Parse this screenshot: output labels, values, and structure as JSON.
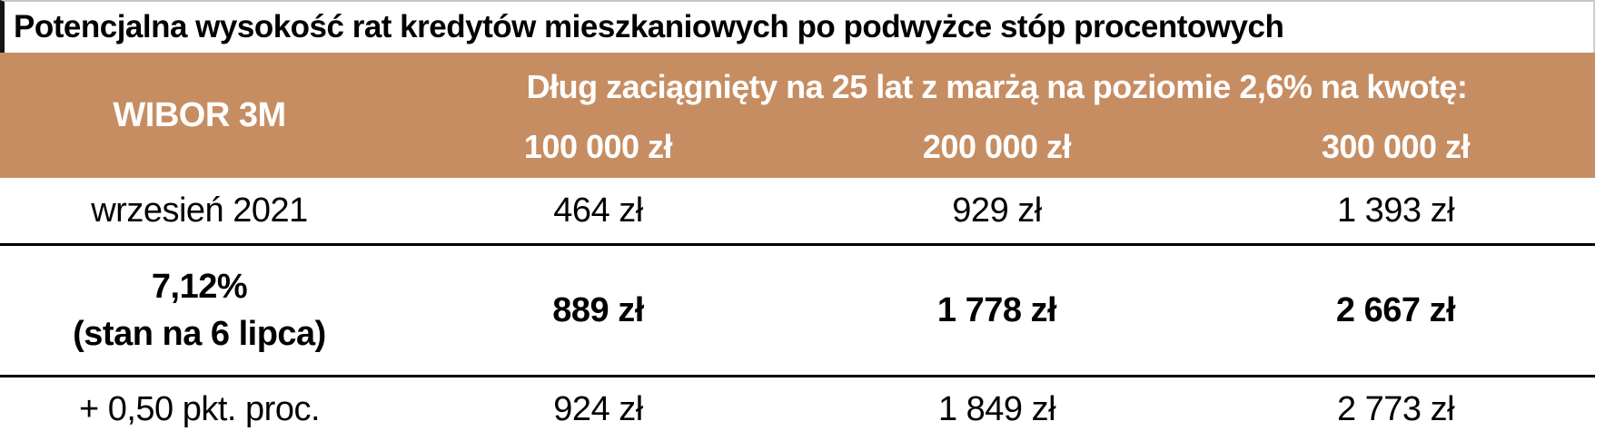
{
  "title": "Potencjalna wysokość rat kredytów mieszkaniowych po podwyżce stóp procentowych",
  "table": {
    "corner_header": "WIBOR 3M",
    "group_header": "Dług zaciągnięty na 25 lat z marżą na poziomie 2,6% na kwotę:",
    "amount_headers": [
      "100 000 zł",
      "200 000 zł",
      "300 000 zł"
    ],
    "rows": [
      {
        "label": "wrzesień 2021",
        "values": [
          "464 zł",
          "929 zł",
          "1 393 zł"
        ]
      },
      {
        "label": "7,12%",
        "label2": "(stan na 6 lipca)",
        "values": [
          "889 zł",
          "1 778 zł",
          "2 667 zł"
        ]
      },
      {
        "label": "+ 0,50 pkt. proc.",
        "values": [
          "924 zł",
          "1 849 zł",
          "2 773 zł"
        ]
      }
    ]
  },
  "colors": {
    "header_bg": "#C78D62",
    "header_text": "#FFFFFF",
    "body_text": "#000000",
    "row_divider": "#000000"
  },
  "chart_data": {
    "type": "table",
    "title": "Potencjalna wysokość rat kredytów mieszkaniowych po podwyżce stóp procentowych",
    "column_group_label": "Dług zaciągnięty na 25 lat z marżą na poziomie 2,6% na kwotę:",
    "columns": [
      "WIBOR 3M",
      "100 000 zł",
      "200 000 zł",
      "300 000 zł"
    ],
    "rows": [
      [
        "wrzesień 2021",
        "464 zł",
        "929 zł",
        "1 393 zł"
      ],
      [
        "7,12% (stan na 6 lipca)",
        "889 zł",
        "1 778 zł",
        "2 667 zł"
      ],
      [
        "+ 0,50 pkt. proc.",
        "924 zł",
        "1 849 zł",
        "2 773 zł"
      ]
    ]
  }
}
